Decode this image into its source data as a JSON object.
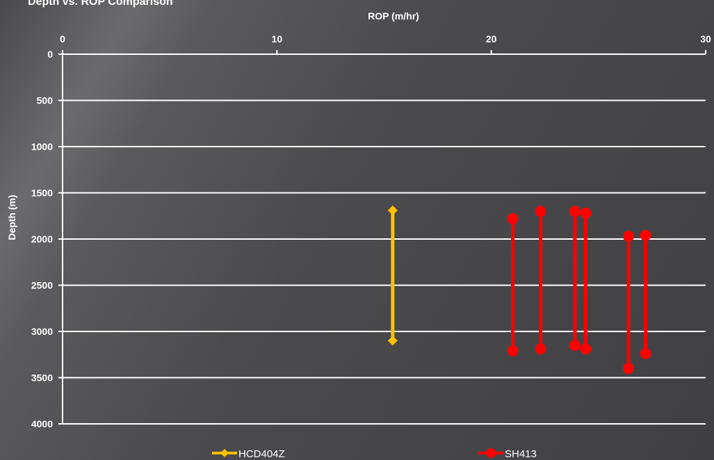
{
  "chart_data": {
    "type": "line",
    "title": "Depth vs. ROP Comparison",
    "xlabel": "ROP (m/hr)",
    "ylabel": "Depth (m)",
    "xlim": [
      0,
      30
    ],
    "ylim": [
      0,
      4000
    ],
    "y_inverted": true,
    "x_axis_position": "top",
    "xticks": [
      0,
      10,
      20,
      30
    ],
    "yticks": [
      0,
      500,
      1000,
      1500,
      2000,
      2500,
      3000,
      3500,
      4000
    ],
    "grid": "horizontal",
    "legend_position": "bottom",
    "series": [
      {
        "name": "HCD404Z",
        "color": "#ffc000",
        "marker": "diamond",
        "segments": [
          [
            [
              15.4,
              1690
            ],
            [
              15.4,
              3100
            ]
          ]
        ]
      },
      {
        "name": "SH413",
        "color": "#ff0000",
        "marker": "circle",
        "segments": [
          [
            [
              21.0,
              1780
            ],
            [
              21.0,
              3210
            ]
          ],
          [
            [
              22.3,
              1700
            ],
            [
              22.3,
              3190
            ]
          ],
          [
            [
              23.9,
              1700
            ],
            [
              23.9,
              3150
            ]
          ],
          [
            [
              24.4,
              1720
            ],
            [
              24.4,
              3190
            ]
          ],
          [
            [
              26.4,
              1970
            ],
            [
              26.4,
              3400
            ]
          ],
          [
            [
              27.2,
              1960
            ],
            [
              27.2,
              3240
            ]
          ]
        ]
      }
    ]
  }
}
